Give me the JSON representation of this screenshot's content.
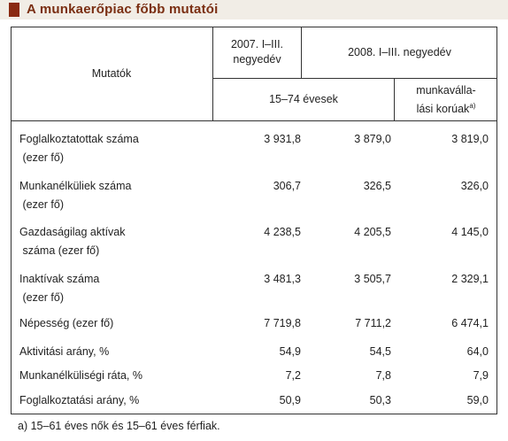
{
  "title": "A munkaerőpiac főbb mutatói",
  "header": {
    "label": "Mutatók",
    "col2007": "2007. I–III. negyedév",
    "col2008": "2008. I–III. negyedév",
    "age": "15–74 évesek",
    "working_age": [
      "munkavállа-",
      "lási korúak"
    ],
    "working_age_note": "a)"
  },
  "rows": [
    {
      "label": [
        "Foglalkoztatottak száma",
        " (ezer fő)"
      ],
      "values": [
        "3 931,8",
        "3 879,0",
        "3 819,0"
      ]
    },
    {
      "label": [
        "Munkanélküliek száma",
        " (ezer fő)"
      ],
      "values": [
        "306,7",
        "326,5",
        "326,0"
      ]
    },
    {
      "label": [
        "Gazdaságilag aktívak",
        " száma (ezer fő)"
      ],
      "values": [
        "4 238,5",
        "4 205,5",
        "4 145,0"
      ]
    },
    {
      "label": [
        "Inaktívak száma",
        " (ezer fő)"
      ],
      "values": [
        "3 481,3",
        "3 505,7",
        "2 329,1"
      ]
    },
    {
      "label": [
        "Népesség (ezer fő)"
      ],
      "values": [
        "7 719,8",
        "7 711,2",
        "6 474,1"
      ]
    },
    {
      "label": [
        "Aktivitási arány, %"
      ],
      "values": [
        "54,9",
        "54,5",
        "64,0"
      ]
    },
    {
      "label": [
        "Munkanélküliségi ráta, %"
      ],
      "values": [
        "7,2",
        "7,8",
        "7,9"
      ]
    },
    {
      "label": [
        "Foglalkoztatási arány, %"
      ],
      "values": [
        "50,9",
        "50,3",
        "59,0"
      ]
    }
  ],
  "footnote": "a) 15–61 éves nők és 15–61 éves férfiak."
}
